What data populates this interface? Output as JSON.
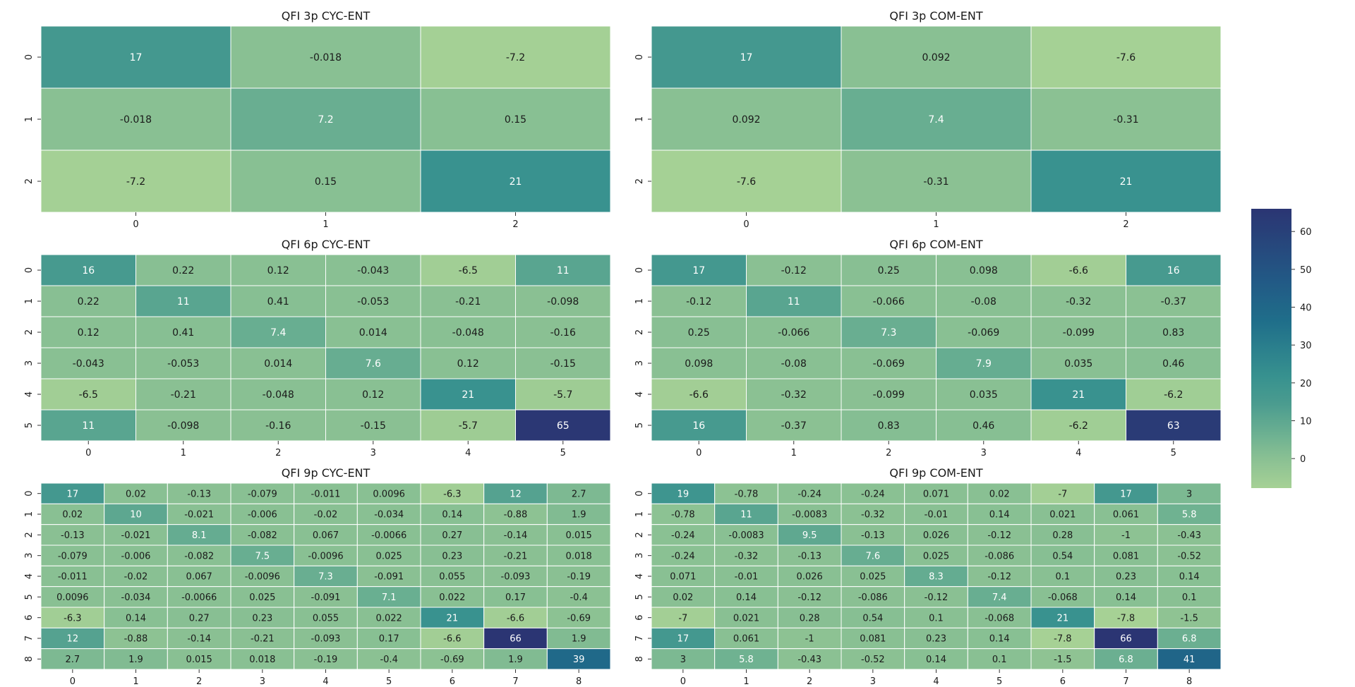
{
  "colorbar": {
    "min": -7.8,
    "max": 66,
    "ticks": [
      "0",
      "10",
      "20",
      "30",
      "40",
      "50",
      "60"
    ],
    "tick_values": [
      0,
      10,
      20,
      30,
      40,
      50,
      60
    ]
  },
  "colors": {
    "cmap": [
      "#a6d195",
      "#8bc193",
      "#6aaf91",
      "#4b9c8f",
      "#37918f",
      "#1f6e8a",
      "#225885",
      "#2b3573"
    ],
    "stops": [
      0,
      0.1,
      0.2,
      0.3,
      0.4,
      0.6,
      0.75,
      1.0
    ],
    "dark_text_threshold": 0.45
  },
  "chart_data": [
    {
      "type": "heatmap",
      "title": "QFI 3p CYC-ENT",
      "x_tick_labels": [
        "0",
        "1",
        "2"
      ],
      "y_tick_labels": [
        "0",
        "1",
        "2"
      ],
      "values": [
        [
          17,
          -0.018,
          -7.2
        ],
        [
          -0.018,
          7.2,
          0.15
        ],
        [
          -7.2,
          0.15,
          21
        ]
      ],
      "labels": [
        [
          "17",
          "-0.018",
          "-7.2"
        ],
        [
          "-0.018",
          "7.2",
          "0.15"
        ],
        [
          "-7.2",
          "0.15",
          "21"
        ]
      ]
    },
    {
      "type": "heatmap",
      "title": "QFI 3p COM-ENT",
      "x_tick_labels": [
        "0",
        "1",
        "2"
      ],
      "y_tick_labels": [
        "0",
        "1",
        "2"
      ],
      "values": [
        [
          17,
          0.092,
          -7.6
        ],
        [
          0.092,
          7.4,
          -0.31
        ],
        [
          -7.6,
          -0.31,
          21
        ]
      ],
      "labels": [
        [
          "17",
          "0.092",
          "-7.6"
        ],
        [
          "0.092",
          "7.4",
          "-0.31"
        ],
        [
          "-7.6",
          "-0.31",
          "21"
        ]
      ]
    },
    {
      "type": "heatmap",
      "title": "QFI 6p CYC-ENT",
      "x_tick_labels": [
        "0",
        "1",
        "2",
        "3",
        "4",
        "5"
      ],
      "y_tick_labels": [
        "0",
        "1",
        "2",
        "3",
        "4",
        "5"
      ],
      "values": [
        [
          16,
          0.22,
          0.12,
          -0.043,
          -6.5,
          11
        ],
        [
          0.22,
          11,
          0.41,
          -0.053,
          -0.21,
          -0.098
        ],
        [
          0.12,
          0.41,
          7.4,
          0.014,
          -0.048,
          -0.16
        ],
        [
          -0.043,
          -0.053,
          0.014,
          7.6,
          0.12,
          -0.15
        ],
        [
          -6.5,
          -0.21,
          -0.048,
          0.12,
          21,
          -5.7
        ],
        [
          11,
          -0.098,
          -0.16,
          -0.15,
          -5.7,
          65
        ]
      ],
      "labels": [
        [
          "16",
          "0.22",
          "0.12",
          "-0.043",
          "-6.5",
          "11"
        ],
        [
          "0.22",
          "11",
          "0.41",
          "-0.053",
          "-0.21",
          "-0.098"
        ],
        [
          "0.12",
          "0.41",
          "7.4",
          "0.014",
          "-0.048",
          "-0.16"
        ],
        [
          "-0.043",
          "-0.053",
          "0.014",
          "7.6",
          "0.12",
          "-0.15"
        ],
        [
          "-6.5",
          "-0.21",
          "-0.048",
          "0.12",
          "21",
          "-5.7"
        ],
        [
          "11",
          "-0.098",
          "-0.16",
          "-0.15",
          "-5.7",
          "65"
        ]
      ]
    },
    {
      "type": "heatmap",
      "title": "QFI 6p COM-ENT",
      "x_tick_labels": [
        "0",
        "1",
        "2",
        "3",
        "4",
        "5"
      ],
      "y_tick_labels": [
        "0",
        "1",
        "2",
        "3",
        "4",
        "5"
      ],
      "values": [
        [
          17,
          -0.12,
          0.25,
          0.098,
          -6.6,
          16
        ],
        [
          -0.12,
          11,
          -0.066,
          -0.08,
          -0.32,
          -0.37
        ],
        [
          0.25,
          -0.066,
          7.3,
          -0.069,
          -0.099,
          0.83
        ],
        [
          0.098,
          -0.08,
          -0.069,
          7.9,
          0.035,
          0.46
        ],
        [
          -6.6,
          -0.32,
          -0.099,
          0.035,
          21,
          -6.2
        ],
        [
          16,
          -0.37,
          0.83,
          0.46,
          -6.2,
          63
        ]
      ],
      "labels": [
        [
          "17",
          "-0.12",
          "0.25",
          "0.098",
          "-6.6",
          "16"
        ],
        [
          "-0.12",
          "11",
          "-0.066",
          "-0.08",
          "-0.32",
          "-0.37"
        ],
        [
          "0.25",
          "-0.066",
          "7.3",
          "-0.069",
          "-0.099",
          "0.83"
        ],
        [
          "0.098",
          "-0.08",
          "-0.069",
          "7.9",
          "0.035",
          "0.46"
        ],
        [
          "-6.6",
          "-0.32",
          "-0.099",
          "0.035",
          "21",
          "-6.2"
        ],
        [
          "16",
          "-0.37",
          "0.83",
          "0.46",
          "-6.2",
          "63"
        ]
      ]
    },
    {
      "type": "heatmap",
      "title": "QFI 9p CYC-ENT",
      "x_tick_labels": [
        "0",
        "1",
        "2",
        "3",
        "4",
        "5",
        "6",
        "7",
        "8"
      ],
      "y_tick_labels": [
        "0",
        "1",
        "2",
        "3",
        "4",
        "5",
        "6",
        "7",
        "8"
      ],
      "values": [
        [
          17,
          0.02,
          -0.13,
          -0.079,
          -0.011,
          0.0096,
          -6.3,
          12,
          2.7
        ],
        [
          0.02,
          10,
          -0.021,
          -0.006,
          -0.02,
          -0.034,
          0.14,
          -0.88,
          1.9
        ],
        [
          -0.13,
          -0.021,
          8.1,
          -0.082,
          0.067,
          -0.0066,
          0.27,
          -0.14,
          0.015
        ],
        [
          -0.079,
          -0.006,
          -0.082,
          7.5,
          -0.0096,
          0.025,
          0.23,
          -0.21,
          0.018
        ],
        [
          -0.011,
          -0.02,
          0.067,
          -0.0096,
          7.3,
          -0.091,
          0.055,
          -0.093,
          -0.19
        ],
        [
          0.0096,
          -0.034,
          -0.0066,
          0.025,
          -0.091,
          7.1,
          0.022,
          0.17,
          -0.4
        ],
        [
          -6.3,
          0.14,
          0.27,
          0.23,
          0.055,
          0.022,
          21,
          -6.6,
          -0.69
        ],
        [
          12,
          -0.88,
          -0.14,
          -0.21,
          -0.093,
          0.17,
          -6.6,
          66,
          1.9
        ],
        [
          2.7,
          1.9,
          0.015,
          0.018,
          -0.19,
          -0.4,
          -0.69,
          1.9,
          39
        ]
      ],
      "labels": [
        [
          "17",
          "0.02",
          "-0.13",
          "-0.079",
          "-0.011",
          "0.0096",
          "-6.3",
          "12",
          "2.7"
        ],
        [
          "0.02",
          "10",
          "-0.021",
          "-0.006",
          "-0.02",
          "-0.034",
          "0.14",
          "-0.88",
          "1.9"
        ],
        [
          "-0.13",
          "-0.021",
          "8.1",
          "-0.082",
          "0.067",
          "-0.0066",
          "0.27",
          "-0.14",
          "0.015"
        ],
        [
          "-0.079",
          "-0.006",
          "-0.082",
          "7.5",
          "-0.0096",
          "0.025",
          "0.23",
          "-0.21",
          "0.018"
        ],
        [
          "-0.011",
          "-0.02",
          "0.067",
          "-0.0096",
          "7.3",
          "-0.091",
          "0.055",
          "-0.093",
          "-0.19"
        ],
        [
          "0.0096",
          "-0.034",
          "-0.0066",
          "0.025",
          "-0.091",
          "7.1",
          "0.022",
          "0.17",
          "-0.4"
        ],
        [
          "-6.3",
          "0.14",
          "0.27",
          "0.23",
          "0.055",
          "0.022",
          "21",
          "-6.6",
          "-0.69"
        ],
        [
          "12",
          "-0.88",
          "-0.14",
          "-0.21",
          "-0.093",
          "0.17",
          "-6.6",
          "66",
          "1.9"
        ],
        [
          "2.7",
          "1.9",
          "0.015",
          "0.018",
          "-0.19",
          "-0.4",
          "-0.69",
          "1.9",
          "39"
        ]
      ]
    },
    {
      "type": "heatmap",
      "title": "QFI 9p COM-ENT",
      "x_tick_labels": [
        "0",
        "1",
        "2",
        "3",
        "4",
        "5",
        "6",
        "7",
        "8"
      ],
      "y_tick_labels": [
        "0",
        "1",
        "2",
        "3",
        "4",
        "5",
        "6",
        "7",
        "8"
      ],
      "values": [
        [
          19,
          -0.78,
          -0.24,
          -0.24,
          0.071,
          0.02,
          -7,
          17,
          3
        ],
        [
          -0.78,
          11,
          -0.0083,
          -0.32,
          -0.01,
          0.14,
          0.021,
          0.061,
          5.8
        ],
        [
          -0.24,
          -0.0083,
          9.5,
          -0.13,
          0.026,
          -0.12,
          0.28,
          -1,
          -0.43
        ],
        [
          -0.24,
          -0.32,
          -0.13,
          7.6,
          0.025,
          -0.086,
          0.54,
          0.081,
          -0.52
        ],
        [
          0.071,
          -0.01,
          0.026,
          0.025,
          8.3,
          -0.12,
          0.1,
          0.23,
          0.14
        ],
        [
          0.02,
          0.14,
          -0.12,
          -0.086,
          -0.12,
          7.4,
          -0.068,
          0.14,
          0.1
        ],
        [
          -7,
          0.021,
          0.28,
          0.54,
          0.1,
          -0.068,
          21,
          -7.8,
          -1.5
        ],
        [
          17,
          0.061,
          -1,
          0.081,
          0.23,
          0.14,
          -7.8,
          66,
          6.8
        ],
        [
          3,
          5.8,
          -0.43,
          -0.52,
          0.14,
          0.1,
          -1.5,
          6.8,
          41
        ]
      ],
      "labels": [
        [
          "19",
          "-0.78",
          "-0.24",
          "-0.24",
          "0.071",
          "0.02",
          "-7",
          "17",
          "3"
        ],
        [
          "-0.78",
          "11",
          "-0.0083",
          "-0.32",
          "-0.01",
          "0.14",
          "0.021",
          "0.061",
          "5.8"
        ],
        [
          "-0.24",
          "-0.0083",
          "9.5",
          "-0.13",
          "0.026",
          "-0.12",
          "0.28",
          "-1",
          "-0.43"
        ],
        [
          "-0.24",
          "-0.32",
          "-0.13",
          "7.6",
          "0.025",
          "-0.086",
          "0.54",
          "0.081",
          "-0.52"
        ],
        [
          "0.071",
          "-0.01",
          "0.026",
          "0.025",
          "8.3",
          "-0.12",
          "0.1",
          "0.23",
          "0.14"
        ],
        [
          "0.02",
          "0.14",
          "-0.12",
          "-0.086",
          "-0.12",
          "7.4",
          "-0.068",
          "0.14",
          "0.1"
        ],
        [
          "-7",
          "0.021",
          "0.28",
          "0.54",
          "0.1",
          "-0.068",
          "21",
          "-7.8",
          "-1.5"
        ],
        [
          "17",
          "0.061",
          "-1",
          "0.081",
          "0.23",
          "0.14",
          "-7.8",
          "66",
          "6.8"
        ],
        [
          "3",
          "5.8",
          "-0.43",
          "-0.52",
          "0.14",
          "0.1",
          "-1.5",
          "6.8",
          "41"
        ]
      ]
    }
  ]
}
